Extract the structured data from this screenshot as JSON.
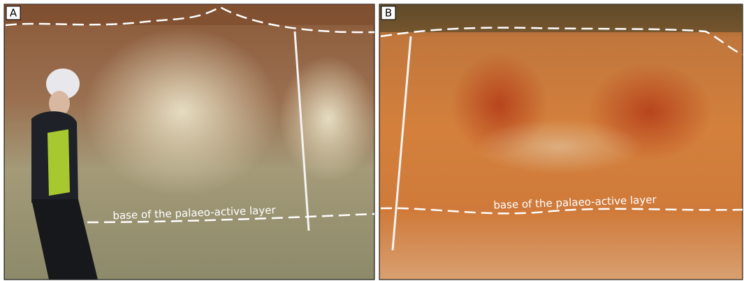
{
  "panels": [
    {
      "label": "A",
      "annotation": "base of the palaeo-active layer"
    },
    {
      "label": "B",
      "annotation": "base of the palaeo-active layer"
    }
  ]
}
